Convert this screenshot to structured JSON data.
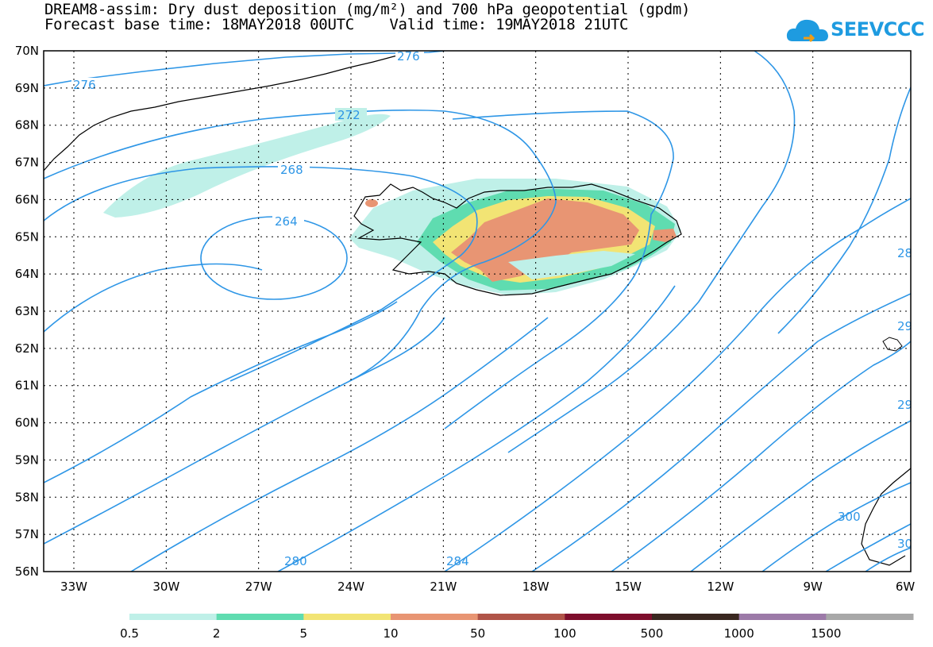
{
  "header": {
    "line1": "DREAM8-assim: Dry dust deposition (mg/m²) and 700 hPa geopotential (gpdm)",
    "line2": "Forecast base time: 18MAY2018 00UTC    Valid time: 19MAY2018 21UTC"
  },
  "logo": {
    "text": "SEEVCCC",
    "icon": "cloud-icon"
  },
  "map": {
    "lat_labels": [
      "70N",
      "69N",
      "68N",
      "67N",
      "66N",
      "65N",
      "64N",
      "63N",
      "62N",
      "61N",
      "60N",
      "59N",
      "58N",
      "57N",
      "56N"
    ],
    "lon_labels": [
      "33W",
      "30W",
      "27W",
      "24W",
      "21W",
      "18W",
      "15W",
      "12W",
      "9W",
      "6W"
    ],
    "contour_labels": [
      "276",
      "276",
      "272",
      "268",
      "264",
      "280",
      "284",
      "28",
      "29",
      "29",
      "300",
      "30"
    ],
    "line_color": "#2e96e6"
  },
  "legend": {
    "colors": [
      "#bff0e8",
      "#5fdcb0",
      "#f2e474",
      "#e89573",
      "#b05448",
      "#7e0e2c",
      "#3a2820",
      "#9c7aa8",
      "#a8a8a8"
    ],
    "labels": [
      "0.5",
      "2",
      "5",
      "10",
      "50",
      "100",
      "500",
      "1000",
      "1500"
    ]
  }
}
